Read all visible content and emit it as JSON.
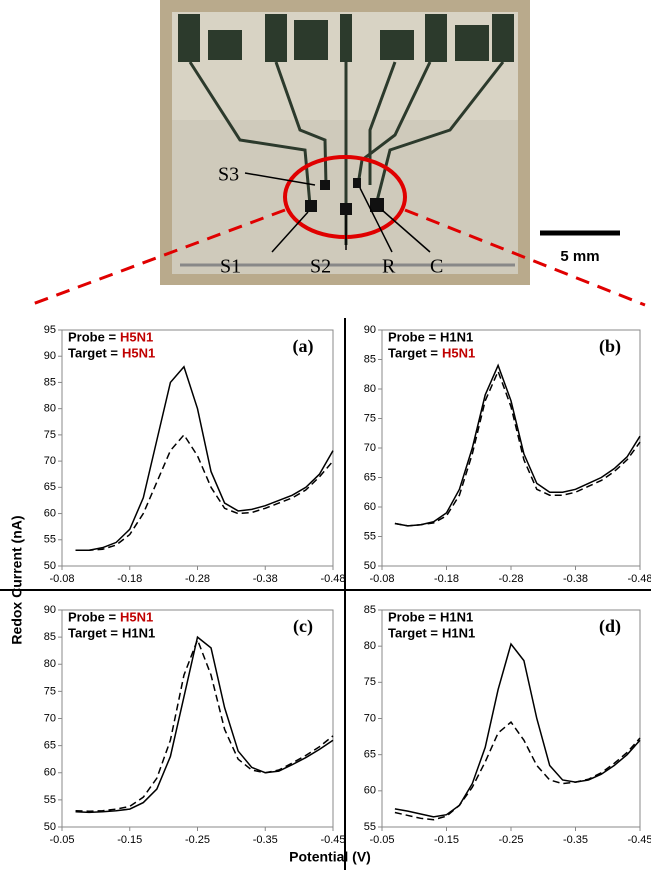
{
  "figure": {
    "y_label": "Redox Current (nA)",
    "x_label": "Potential (V)"
  },
  "photo": {
    "labels": [
      "S3",
      "S1",
      "S2",
      "R",
      "C"
    ],
    "scale_label": "5 mm"
  },
  "chart_data": [
    {
      "type": "line",
      "panel": "(a)",
      "probe_label": "Probe =",
      "probe": "H5N1",
      "probe_color": "#c00000",
      "target_label": "Target =",
      "target": "H5N1",
      "target_color": "#c00000",
      "x": [
        -0.1,
        -0.12,
        -0.14,
        -0.16,
        -0.18,
        -0.2,
        -0.22,
        -0.24,
        -0.26,
        -0.28,
        -0.3,
        -0.32,
        -0.34,
        -0.36,
        -0.38,
        -0.4,
        -0.42,
        -0.44,
        -0.46,
        -0.48
      ],
      "series": [
        {
          "color": "#000000",
          "dash": false,
          "values": [
            53,
            53,
            53.5,
            54.5,
            57,
            63,
            74,
            85,
            88,
            80,
            68,
            62,
            60.5,
            60.8,
            61.5,
            62.5,
            63.5,
            65,
            67.5,
            72
          ]
        },
        {
          "color": "#000000",
          "dash": true,
          "values": [
            53,
            53,
            53.2,
            54,
            56,
            60,
            66,
            72,
            75,
            71,
            65,
            61,
            60,
            60.2,
            61,
            62,
            63,
            64.5,
            67,
            70
          ]
        }
      ],
      "xlim": [
        -0.08,
        -0.48
      ],
      "xticks": [
        -0.08,
        -0.18,
        -0.28,
        -0.38,
        -0.48
      ],
      "ylim": [
        50,
        95
      ],
      "yticks": [
        50,
        55,
        60,
        65,
        70,
        75,
        80,
        85,
        90,
        95
      ]
    },
    {
      "type": "line",
      "panel": "(b)",
      "probe_label": "Probe =",
      "probe": "H1N1",
      "probe_color": "#000000",
      "target_label": "Target =",
      "target": "H5N1",
      "target_color": "#c00000",
      "x": [
        -0.1,
        -0.12,
        -0.14,
        -0.16,
        -0.18,
        -0.2,
        -0.22,
        -0.24,
        -0.26,
        -0.28,
        -0.3,
        -0.32,
        -0.34,
        -0.36,
        -0.38,
        -0.4,
        -0.42,
        -0.44,
        -0.46,
        -0.48
      ],
      "series": [
        {
          "color": "#000000",
          "dash": false,
          "values": [
            57.2,
            56.8,
            57,
            57.5,
            59,
            63,
            70,
            79,
            84,
            78,
            69,
            64,
            62.5,
            62.5,
            63,
            64,
            65,
            66.5,
            68.5,
            72
          ]
        },
        {
          "color": "#000000",
          "dash": true,
          "values": [
            57.2,
            56.8,
            57,
            57.3,
            58.5,
            62,
            69,
            78,
            83,
            77,
            68,
            63,
            62,
            62,
            62.5,
            63.5,
            64.5,
            66,
            68,
            71
          ]
        }
      ],
      "xlim": [
        -0.08,
        -0.48
      ],
      "xticks": [
        -0.08,
        -0.18,
        -0.28,
        -0.38,
        -0.48
      ],
      "ylim": [
        50,
        90
      ],
      "yticks": [
        50,
        55,
        60,
        65,
        70,
        75,
        80,
        85,
        90
      ]
    },
    {
      "type": "line",
      "panel": "(c)",
      "probe_label": "Probe =",
      "probe": "H5N1",
      "probe_color": "#c00000",
      "target_label": "Target =",
      "target": "H1N1",
      "target_color": "#000000",
      "x": [
        -0.07,
        -0.09,
        -0.11,
        -0.13,
        -0.15,
        -0.17,
        -0.19,
        -0.21,
        -0.23,
        -0.25,
        -0.27,
        -0.29,
        -0.31,
        -0.33,
        -0.35,
        -0.37,
        -0.39,
        -0.41,
        -0.43,
        -0.45
      ],
      "series": [
        {
          "color": "#000000",
          "dash": false,
          "values": [
            52.8,
            52.7,
            52.8,
            53,
            53.3,
            54.5,
            57,
            63,
            74,
            85,
            83,
            72,
            64,
            61,
            60,
            60.3,
            61.5,
            62.8,
            64.3,
            66
          ]
        },
        {
          "color": "#000000",
          "dash": true,
          "values": [
            53,
            52.9,
            53,
            53.3,
            53.8,
            55.5,
            59,
            66,
            78,
            84.5,
            78,
            68,
            62.5,
            60.5,
            60,
            60.5,
            61.8,
            63.2,
            64.8,
            66.8
          ]
        }
      ],
      "xlim": [
        -0.05,
        -0.45
      ],
      "xticks": [
        -0.05,
        -0.15,
        -0.25,
        -0.35,
        -0.45
      ],
      "ylim": [
        50,
        90
      ],
      "yticks": [
        50,
        55,
        60,
        65,
        70,
        75,
        80,
        85,
        90
      ]
    },
    {
      "type": "line",
      "panel": "(d)",
      "probe_label": "Probe =",
      "probe": "H1N1",
      "probe_color": "#000000",
      "target_label": "Target =",
      "target": "H1N1",
      "target_color": "#000000",
      "x": [
        -0.07,
        -0.09,
        -0.11,
        -0.13,
        -0.15,
        -0.17,
        -0.19,
        -0.21,
        -0.23,
        -0.25,
        -0.27,
        -0.29,
        -0.31,
        -0.33,
        -0.35,
        -0.37,
        -0.39,
        -0.41,
        -0.43,
        -0.45
      ],
      "series": [
        {
          "color": "#000000",
          "dash": false,
          "values": [
            57.5,
            57.2,
            56.8,
            56.4,
            56.7,
            58,
            61,
            66,
            74,
            80.3,
            78,
            70,
            63.5,
            61.5,
            61.2,
            61.5,
            62.3,
            63.5,
            65,
            67
          ]
        },
        {
          "color": "#000000",
          "dash": true,
          "values": [
            57,
            56.6,
            56.2,
            56,
            56.5,
            58,
            60.5,
            64,
            68,
            69.5,
            67,
            63.5,
            61.5,
            61,
            61.2,
            61.6,
            62.5,
            63.8,
            65.3,
            67.3
          ]
        }
      ],
      "xlim": [
        -0.05,
        -0.45
      ],
      "xticks": [
        -0.05,
        -0.15,
        -0.25,
        -0.35,
        -0.45
      ],
      "ylim": [
        55,
        85
      ],
      "yticks": [
        55,
        60,
        65,
        70,
        75,
        80,
        85
      ]
    }
  ]
}
